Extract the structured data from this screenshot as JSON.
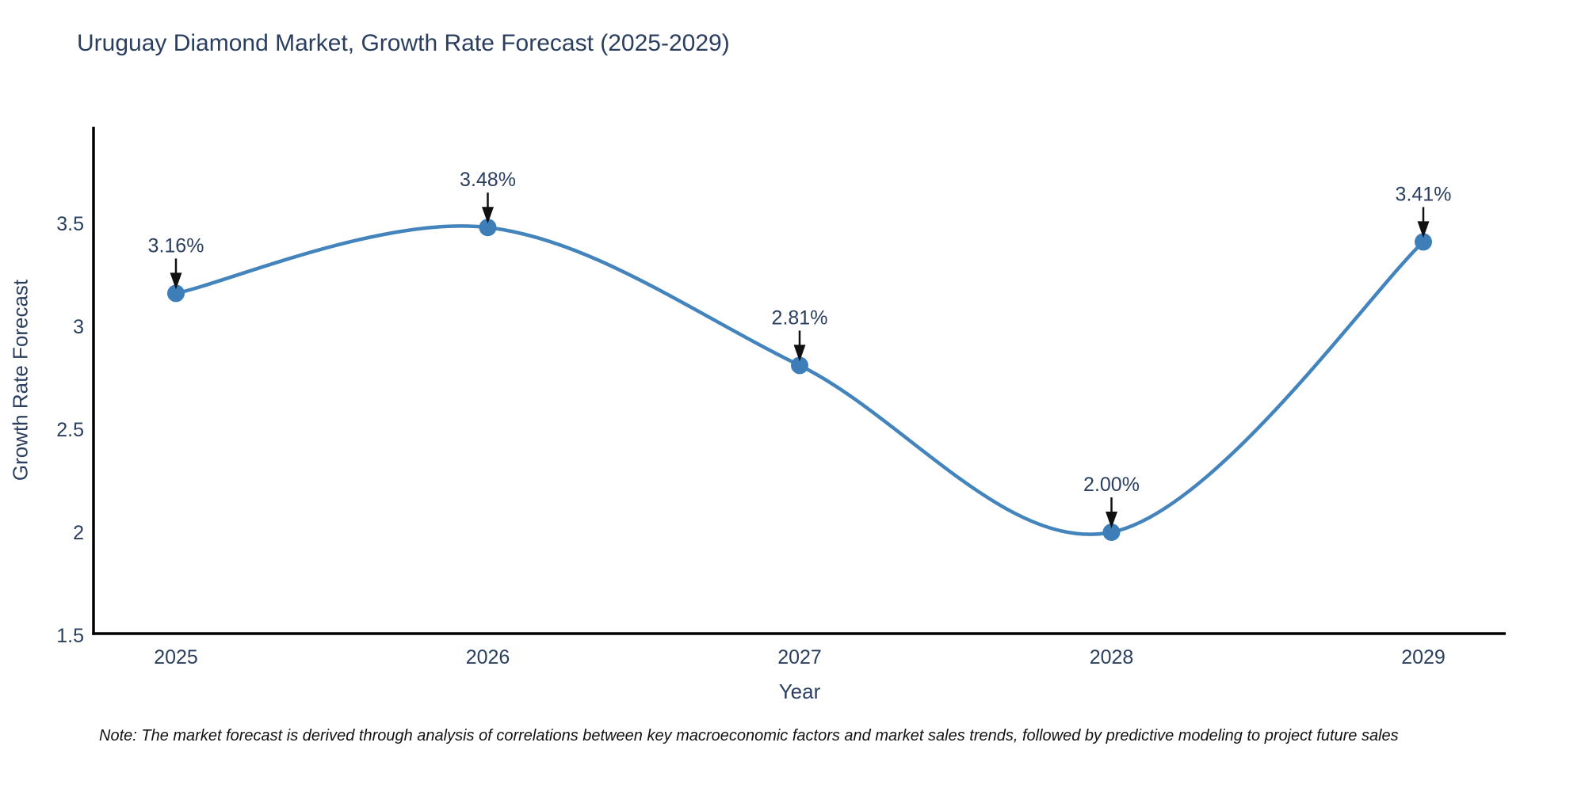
{
  "title": "Uruguay Diamond Market, Growth Rate Forecast (2025-2029)",
  "note": "Note: The market forecast is derived through analysis of correlations between key macroeconomic factors and market sales trends, followed by predictive modeling to project future sales",
  "chart_data": {
    "type": "line",
    "title": "Uruguay Diamond Market, Growth Rate Forecast (2025-2029)",
    "xlabel": "Year",
    "ylabel": "Growth Rate Forecast",
    "categories": [
      "2025",
      "2026",
      "2027",
      "2028",
      "2029"
    ],
    "values": [
      3.16,
      3.48,
      2.81,
      2.0,
      3.41
    ],
    "point_labels": [
      "3.16%",
      "3.48%",
      "2.81%",
      "2.00%",
      "3.41%"
    ],
    "ytick_labels": [
      "1.5",
      "2",
      "2.5",
      "3",
      "3.5"
    ],
    "ytick_values": [
      1.5,
      2.0,
      2.5,
      3.0,
      3.5
    ],
    "ylim": [
      1.5,
      3.97
    ],
    "line_shape": "spline",
    "grid": false,
    "legend_position": "none",
    "annotations_have_arrows": true,
    "colors": {
      "line": "#4384bd",
      "marker": "#3d7eb8",
      "axis": "#000000",
      "tick_text": "#2a3f5f",
      "title_text": "#2a3f5f",
      "annotation_text": "#2a3f5f",
      "arrow": "#111111",
      "background": "#ffffff"
    }
  }
}
